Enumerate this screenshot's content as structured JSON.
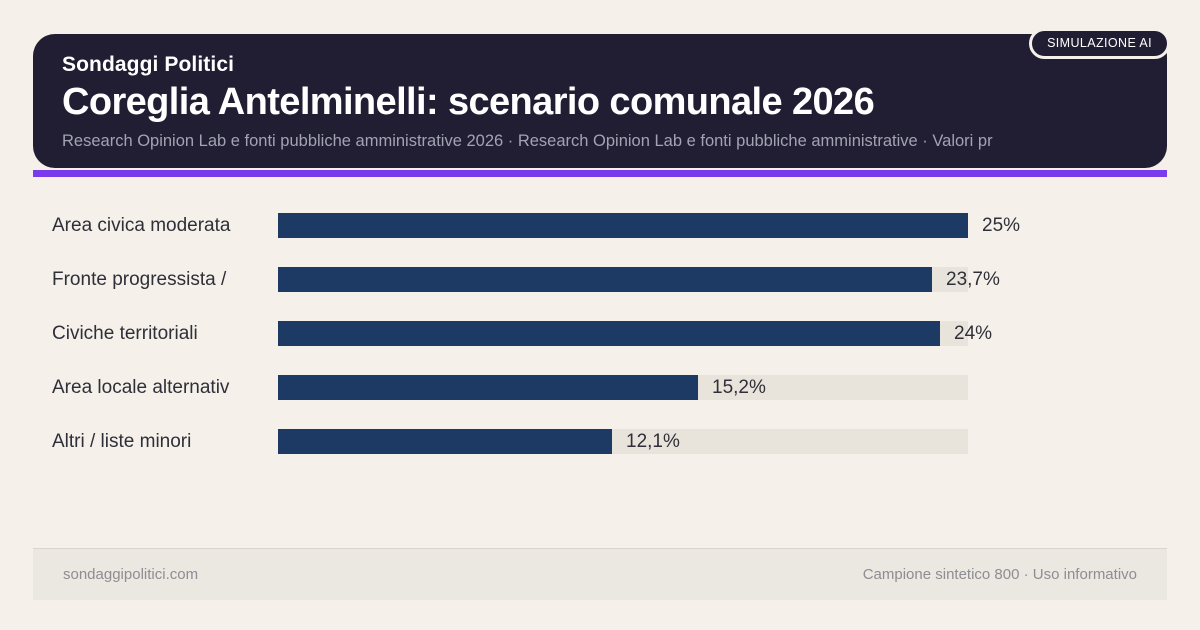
{
  "page": {
    "background": "#f5f1ea"
  },
  "header": {
    "kicker": "Sondaggi Politici",
    "title": "Coreglia Antelminelli: scenario comunale 2026",
    "subtitle": "Research Opinion Lab e fonti pubbliche amministrative 2026 · Research Opinion Lab e fonti pubbliche amministrative · Valori pr",
    "badge": "SIMULAZIONE AI",
    "card_color": "#211d33",
    "accent_color": "#7b3bec"
  },
  "chart_data": {
    "type": "bar",
    "orientation": "horizontal",
    "title": "Coreglia Antelminelli: scenario comunale 2026",
    "categories": [
      "Area civica moderata",
      "Fronte progressista /",
      "Civiche territoriali",
      "Area locale alternativ",
      "Altri / liste minori"
    ],
    "values": [
      25,
      23.7,
      24,
      15.2,
      12.1
    ],
    "value_labels": [
      "25%",
      "23,7%",
      "24%",
      "15,2%",
      "12,1%"
    ],
    "xlim": [
      0,
      25
    ],
    "grid": false,
    "legend": false,
    "bar_color": "#1d3a64",
    "track_color": "#e9e4db"
  },
  "footer": {
    "left": "sondaggipolitici.com",
    "right": "Campione sintetico 800 · Uso informativo"
  }
}
